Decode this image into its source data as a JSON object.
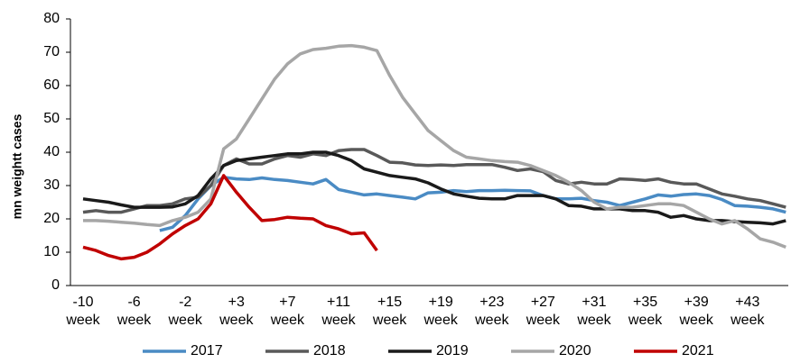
{
  "chart_data": {
    "type": "line",
    "ylabel": "mn weightt cases",
    "categories": [
      "-10 week",
      null,
      null,
      null,
      "-6 week",
      null,
      null,
      null,
      "-2 week",
      null,
      null,
      null,
      "+3 week",
      null,
      null,
      null,
      "+7 week",
      null,
      null,
      null,
      "+11 week",
      null,
      null,
      null,
      "+15 week",
      null,
      null,
      null,
      "+19 week",
      null,
      null,
      null,
      "+23 week",
      null,
      null,
      null,
      "+27 week",
      null,
      null,
      null,
      "+31 week",
      null,
      null,
      null,
      "+35 week",
      null,
      null,
      null,
      "+39 week",
      null,
      null,
      null,
      "+43 week",
      null,
      null,
      null
    ],
    "ylim": [
      0,
      80
    ],
    "yticks": [
      0,
      10,
      20,
      30,
      40,
      50,
      60,
      70,
      80
    ],
    "grid": false,
    "legend": "bottom",
    "series": [
      {
        "name": "2017",
        "color": "#4a8bc4",
        "values": [
          null,
          null,
          null,
          null,
          null,
          null,
          16.5,
          17.5,
          21,
          26,
          30,
          32.5,
          32,
          31.8,
          32.3,
          31.8,
          31.5,
          31,
          30.5,
          31.8,
          28.8,
          28,
          27.2,
          27.5,
          27,
          26.5,
          26,
          27.8,
          28,
          28.5,
          28.2,
          28.5,
          28.5,
          28.6,
          28.5,
          28.4,
          27,
          26,
          26,
          26.2,
          25.5,
          25,
          24,
          25,
          26,
          27.2,
          26.8,
          27.3,
          27.5,
          27,
          25.8,
          24,
          23.8,
          23.5,
          23,
          22
        ]
      },
      {
        "name": "2018",
        "color": "#595959",
        "values": [
          22,
          22.5,
          22,
          22,
          23,
          24,
          24,
          24.5,
          26,
          26.5,
          30,
          36,
          38,
          36.5,
          36.5,
          38,
          39,
          38.5,
          39.5,
          39,
          40.5,
          40.8,
          40.8,
          39,
          37,
          36.8,
          36.2,
          36,
          36.2,
          36,
          36.3,
          36.3,
          36.3,
          35.5,
          34.5,
          35,
          34.2,
          31.5,
          30.5,
          31,
          30.5,
          30.5,
          32,
          31.8,
          31.5,
          32,
          31,
          30.5,
          30.5,
          29,
          27.5,
          26.8,
          26,
          25.5,
          24.5,
          23.5
        ]
      },
      {
        "name": "2019",
        "color": "#1a1a1a",
        "values": [
          26,
          25.5,
          25,
          24.2,
          23.5,
          23.5,
          23.5,
          23.6,
          24.5,
          27,
          32,
          36,
          37.5,
          38,
          38.5,
          39,
          39.5,
          39.5,
          40,
          40,
          39,
          37.5,
          35,
          34,
          33,
          32.5,
          32,
          30.8,
          29,
          27.5,
          26.8,
          26.2,
          26,
          26,
          27,
          27,
          27,
          26,
          24,
          23.8,
          23,
          23,
          23,
          22.5,
          22.5,
          22,
          20.5,
          21,
          20,
          19.5,
          19.5,
          19.2,
          19,
          18.8,
          18.5,
          19.5
        ]
      },
      {
        "name": "2020",
        "color": "#a6a6a6",
        "values": [
          19.5,
          19.5,
          19.3,
          19,
          18.7,
          18.3,
          18,
          19.5,
          20.5,
          22,
          26,
          41,
          44,
          50,
          56,
          62,
          66.5,
          69.5,
          70.8,
          71.2,
          71.8,
          72,
          71.5,
          70.5,
          63,
          56.5,
          51.5,
          46.5,
          43.5,
          40.5,
          38.5,
          38,
          37.5,
          37.2,
          37,
          36,
          34.5,
          33,
          31,
          28.5,
          25,
          23,
          23.5,
          23.5,
          24,
          24.5,
          24.5,
          24,
          22,
          20,
          18.5,
          19.5,
          17,
          14,
          13,
          11.5
        ]
      },
      {
        "name": "2021",
        "color": "#c00000",
        "values": [
          11.5,
          10.5,
          9,
          8,
          8.5,
          10,
          12.5,
          15.5,
          18,
          20,
          24.5,
          33,
          28,
          23.5,
          19.5,
          19.8,
          20.5,
          20.2,
          20,
          18,
          17,
          15.5,
          15.8,
          10.5,
          null,
          null,
          null,
          null,
          null,
          null,
          null,
          null,
          null,
          null,
          null,
          null,
          null,
          null,
          null,
          null,
          null,
          null,
          null,
          null,
          null,
          null,
          null,
          null,
          null,
          null,
          null,
          null,
          null,
          null,
          null,
          null
        ]
      }
    ]
  }
}
